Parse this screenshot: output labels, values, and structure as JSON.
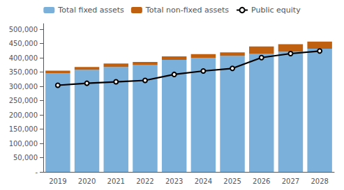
{
  "chart_data": {
    "type": "bar",
    "stacked": true,
    "grid": false,
    "legend": "top",
    "categories": [
      2019,
      2020,
      2021,
      2022,
      2023,
      2024,
      2025,
      2026,
      2027,
      2028
    ],
    "series": [
      {
        "name": "Total fixed assets",
        "type": "bar",
        "color": "#7ab0d9",
        "values": [
          346000,
          358000,
          368000,
          375000,
          393000,
          400000,
          407000,
          415000,
          422000,
          432000
        ]
      },
      {
        "name": "Total non-fixed assets",
        "type": "bar",
        "color": "#bf6010",
        "values": [
          9000,
          10000,
          12000,
          11000,
          12000,
          13000,
          12000,
          25000,
          26000,
          25000
        ]
      },
      {
        "name": "Public equity",
        "type": "line",
        "color": "#000000",
        "values": [
          304000,
          311000,
          316000,
          321000,
          342000,
          354000,
          363000,
          401000,
          415000,
          424000
        ]
      }
    ],
    "ylim": [
      0,
      520000
    ],
    "yticks": [
      {
        "value": 0,
        "label": "-"
      },
      {
        "value": 50000,
        "label": "50,000"
      },
      {
        "value": 100000,
        "label": "100,000"
      },
      {
        "value": 150000,
        "label": "150,000"
      },
      {
        "value": 200000,
        "label": "200,000"
      },
      {
        "value": 250000,
        "label": "250,000"
      },
      {
        "value": 300000,
        "label": "300,000"
      },
      {
        "value": 350000,
        "label": "350,000"
      },
      {
        "value": 400000,
        "label": "400,000"
      },
      {
        "value": 450000,
        "label": "450,000"
      },
      {
        "value": 500000,
        "label": "500,000"
      }
    ]
  }
}
